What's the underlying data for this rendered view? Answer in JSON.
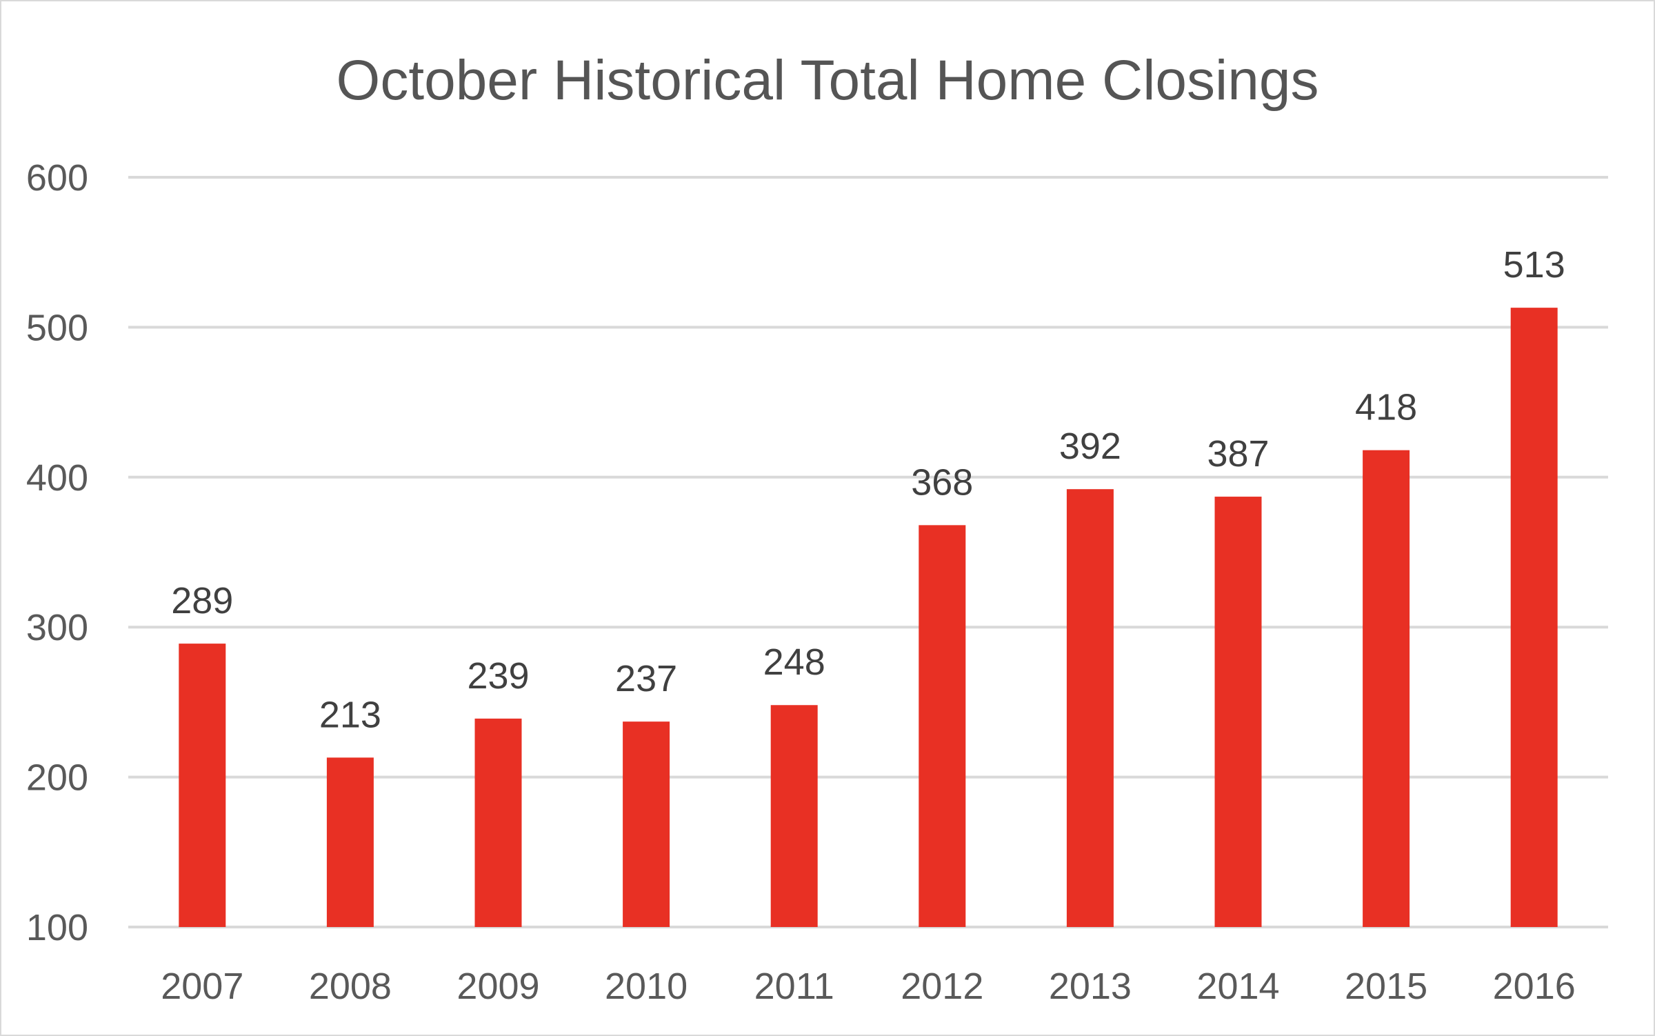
{
  "chart_data": {
    "type": "bar",
    "title": "October Historical Total Home Closings",
    "xlabel": "",
    "ylabel": "",
    "categories": [
      "2007",
      "2008",
      "2009",
      "2010",
      "2011",
      "2012",
      "2013",
      "2014",
      "2015",
      "2016"
    ],
    "values": [
      289,
      213,
      239,
      237,
      248,
      368,
      392,
      387,
      418,
      513
    ],
    "data_labels": [
      "289",
      "213",
      "239",
      "237",
      "248",
      "368",
      "392",
      "387",
      "418",
      "513"
    ],
    "ylim": [
      100,
      600
    ],
    "yticks": [
      100,
      200,
      300,
      400,
      500,
      600
    ],
    "ytick_labels": [
      "100",
      "200",
      "300",
      "400",
      "500",
      "600"
    ],
    "grid": true,
    "legend": "none",
    "bar_color": "#e83024",
    "grid_color": "#d9d9d9"
  }
}
